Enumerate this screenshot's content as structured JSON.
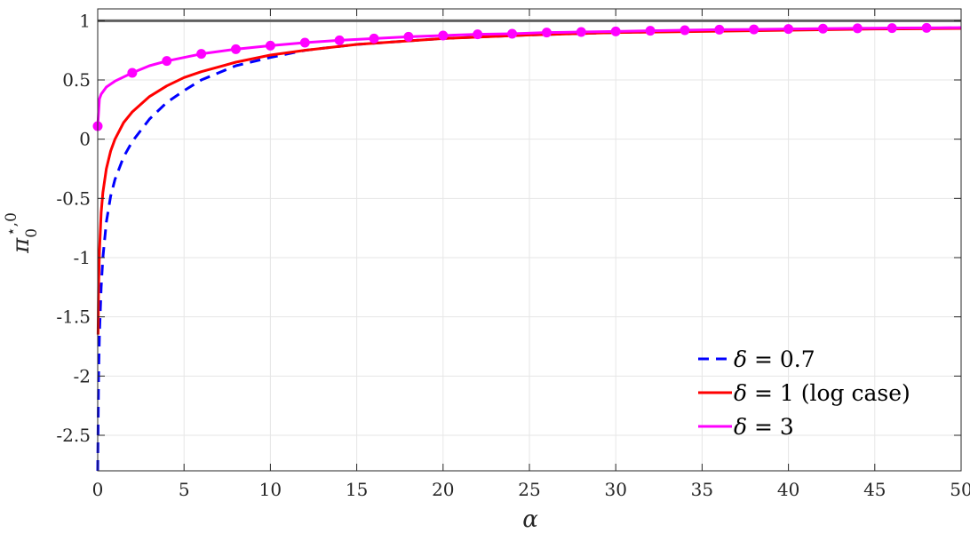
{
  "chart_data": {
    "type": "line",
    "xlabel": "α",
    "ylabel_main": "π",
    "ylabel_sub": "0",
    "ylabel_sup": "⋆,0",
    "xlim": [
      0,
      50
    ],
    "ylim": [
      -2.8,
      1.1
    ],
    "x_ticks": [
      0,
      5,
      10,
      15,
      20,
      25,
      30,
      35,
      40,
      45,
      50
    ],
    "x_tick_labels": [
      "0",
      "5",
      "10",
      "15",
      "20",
      "25",
      "30",
      "35",
      "40",
      "45",
      "50"
    ],
    "y_ticks": [
      -2.5,
      -2,
      -1.5,
      -1,
      -0.5,
      0,
      0.5,
      1
    ],
    "y_tick_labels": [
      "-2.5",
      "-2",
      "-1.5",
      "-1",
      "-0.5",
      "0",
      "0.5",
      "1"
    ],
    "grid": true,
    "legend_position": "bottom-right",
    "reference_line": {
      "y": 1,
      "color": "#606060"
    },
    "series": [
      {
        "name_symbol": "δ",
        "name_rest": " = 0.7",
        "color": "#0000ff",
        "style": "dashed",
        "x": [
          0,
          0.05,
          0.1,
          0.2,
          0.3,
          0.5,
          0.75,
          1,
          1.5,
          2,
          3,
          4,
          5,
          6,
          8,
          10,
          12,
          15,
          20,
          25,
          30,
          35,
          40,
          45,
          50
        ],
        "y": [
          -2.85,
          -2.0,
          -1.65,
          -1.25,
          -1.0,
          -0.7,
          -0.48,
          -0.34,
          -0.15,
          -0.02,
          0.17,
          0.31,
          0.41,
          0.5,
          0.62,
          0.69,
          0.75,
          0.8,
          0.85,
          0.88,
          0.9,
          0.915,
          0.925,
          0.935,
          0.94
        ]
      },
      {
        "name_symbol": "δ",
        "name_rest": " = 1 (log case)",
        "color": "#ff0000",
        "style": "solid",
        "x": [
          0.02,
          0.05,
          0.1,
          0.2,
          0.3,
          0.5,
          0.75,
          1,
          1.5,
          2,
          3,
          4,
          5,
          6,
          8,
          10,
          12,
          15,
          20,
          25,
          30,
          35,
          40,
          45,
          50
        ],
        "y": [
          -1.65,
          -1.25,
          -0.95,
          -0.62,
          -0.45,
          -0.25,
          -0.1,
          0.0,
          0.14,
          0.23,
          0.36,
          0.45,
          0.52,
          0.57,
          0.65,
          0.71,
          0.75,
          0.8,
          0.85,
          0.88,
          0.9,
          0.91,
          0.92,
          0.93,
          0.935
        ]
      },
      {
        "name_symbol": "δ",
        "name_rest": " = 3",
        "color": "#ff00ff",
        "style": "solid-markers",
        "x": [
          0,
          0.1,
          0.2,
          0.5,
          1,
          2,
          3,
          4,
          6,
          8,
          10,
          12,
          14,
          16,
          18,
          20,
          22,
          24,
          26,
          28,
          30,
          32,
          34,
          36,
          38,
          40,
          42,
          44,
          46,
          48,
          50
        ],
        "y": [
          0.11,
          0.34,
          0.38,
          0.44,
          0.49,
          0.56,
          0.62,
          0.66,
          0.72,
          0.76,
          0.79,
          0.815,
          0.835,
          0.85,
          0.865,
          0.875,
          0.885,
          0.89,
          0.9,
          0.905,
          0.91,
          0.915,
          0.92,
          0.925,
          0.927,
          0.93,
          0.933,
          0.936,
          0.938,
          0.94,
          0.942
        ],
        "marker_x": [
          0,
          2,
          4,
          6,
          8,
          10,
          12,
          14,
          16,
          18,
          20,
          22,
          24,
          26,
          28,
          30,
          32,
          34,
          36,
          38,
          40,
          42,
          44,
          46,
          48
        ]
      }
    ]
  }
}
